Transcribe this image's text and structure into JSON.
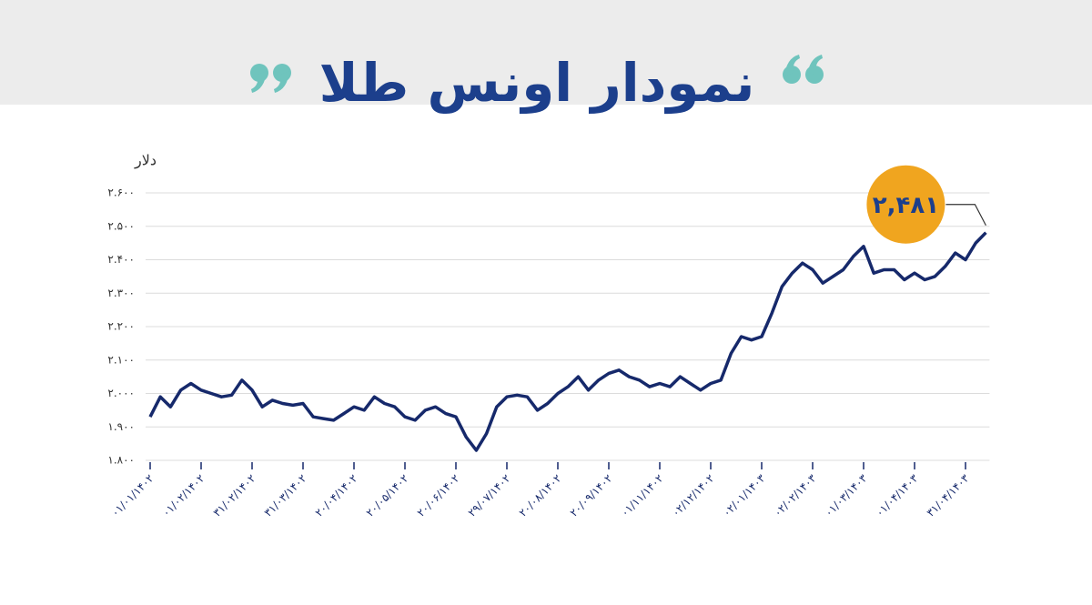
{
  "chart_data": {
    "type": "line",
    "title": "نمودار اونس طلا",
    "ylabel": "دلار",
    "color": "#16296b",
    "grid": true,
    "ylim": [
      1800,
      2600
    ],
    "yticks": [
      {
        "value": 1800,
        "label": "۱.۸۰۰"
      },
      {
        "value": 1900,
        "label": "۱.۹۰۰"
      },
      {
        "value": 2000,
        "label": "۲.۰۰۰"
      },
      {
        "value": 2100,
        "label": "۲.۱۰۰"
      },
      {
        "value": 2200,
        "label": "۲.۲۰۰"
      },
      {
        "value": 2300,
        "label": "۲.۳۰۰"
      },
      {
        "value": 2400,
        "label": "۲.۴۰۰"
      },
      {
        "value": 2500,
        "label": "۲.۵۰۰"
      },
      {
        "value": 2600,
        "label": "۲.۶۰۰"
      }
    ],
    "categories": [
      "۰۱/۰۱/۱۴۰۲",
      null,
      null,
      null,
      null,
      "۰۱/۰۲/۱۴۰۲",
      null,
      null,
      null,
      null,
      "۳۱/۰۲/۱۴۰۲",
      null,
      null,
      null,
      null,
      "۳۱/۰۳/۱۴۰۲",
      null,
      null,
      null,
      null,
      "۲۰/۰۴/۱۴۰۲",
      null,
      null,
      null,
      null,
      "۲۰/۰۵/۱۴۰۲",
      null,
      null,
      null,
      null,
      "۲۰/۰۶/۱۴۰۲",
      null,
      null,
      null,
      null,
      "۲۹/۰۷/۱۴۰۲",
      null,
      null,
      null,
      null,
      "۲۰/۰۸/۱۴۰۲",
      null,
      null,
      null,
      null,
      "۲۰/۰۹/۱۴۰۲",
      null,
      null,
      null,
      null,
      "۰۱/۱۱/۱۴۰۲",
      null,
      null,
      null,
      null,
      "۰۲/۱۲/۱۴۰۲",
      null,
      null,
      null,
      null,
      "۰۲/۰۱/۱۴۰۳",
      null,
      null,
      null,
      null,
      "۰۲/۰۲/۱۴۰۳",
      null,
      null,
      null,
      null,
      "۰۱/۰۳/۱۴۰۳",
      null,
      null,
      null,
      null,
      "۰۱/۰۴/۱۴۰۳",
      null,
      null,
      null,
      null,
      "۳۱/۰۴/۱۴۰۳",
      null,
      null
    ],
    "values": [
      1930,
      1990,
      1960,
      2010,
      2030,
      2010,
      2000,
      1990,
      1995,
      2040,
      2010,
      1960,
      1980,
      1970,
      1965,
      1970,
      1930,
      1925,
      1920,
      1940,
      1960,
      1950,
      1990,
      1970,
      1960,
      1930,
      1920,
      1950,
      1960,
      1940,
      1930,
      1870,
      1830,
      1880,
      1960,
      1990,
      1995,
      1990,
      1950,
      1970,
      2000,
      2020,
      2050,
      2010,
      2040,
      2060,
      2070,
      2050,
      2040,
      2020,
      2030,
      2020,
      2050,
      2030,
      2010,
      2030,
      2040,
      2120,
      2170,
      2160,
      2170,
      2240,
      2320,
      2360,
      2390,
      2370,
      2330,
      2350,
      2370,
      2410,
      2440,
      2360,
      2370,
      2370,
      2340,
      2360,
      2340,
      2350,
      2380,
      2420,
      2400,
      2450,
      2481
    ],
    "value_labels": [
      null,
      null,
      null,
      null,
      null,
      null,
      null,
      null,
      null,
      null,
      null,
      null,
      null,
      null,
      null,
      null,
      null,
      null,
      null,
      null,
      null,
      null,
      null,
      null,
      null,
      null,
      null,
      null,
      null,
      null,
      null,
      null,
      null,
      null,
      null,
      null,
      null,
      null,
      null,
      null,
      null,
      null,
      null,
      null,
      null,
      null,
      null,
      null,
      null,
      null,
      null,
      null,
      null,
      null,
      null,
      null,
      null,
      null,
      null,
      null,
      null,
      null,
      null,
      null,
      null,
      null,
      null,
      null,
      null,
      null,
      null,
      null,
      null,
      null,
      null,
      null,
      null,
      null,
      null,
      null,
      null,
      null,
      "۲,۴۸۱"
    ]
  }
}
